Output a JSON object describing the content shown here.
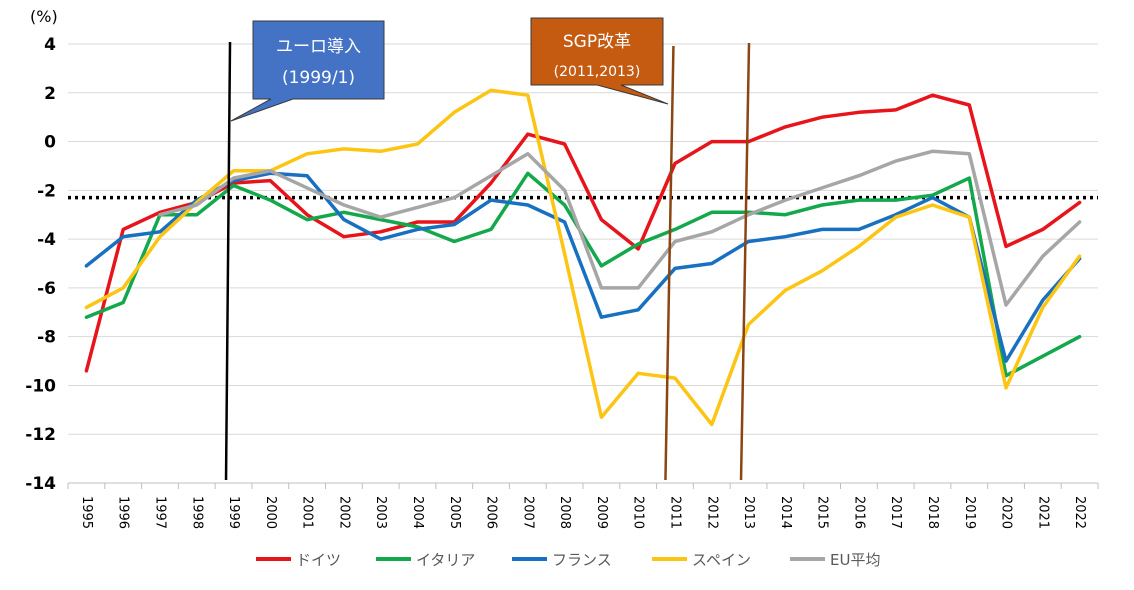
{
  "chart_data": {
    "type": "line",
    "y_unit": "(%)",
    "ylim": [
      -14,
      4
    ],
    "yticks": [
      4,
      2,
      0,
      -2,
      -4,
      -6,
      -8,
      -10,
      -12,
      -14
    ],
    "categories": [
      "1995",
      "1996",
      "1997",
      "1998",
      "1999",
      "2000",
      "2001",
      "2002",
      "2003",
      "2004",
      "2005",
      "2006",
      "2007",
      "2008",
      "2009",
      "2010",
      "2011",
      "2012",
      "2013",
      "2014",
      "2015",
      "2016",
      "2017",
      "2018",
      "2019",
      "2020",
      "2021",
      "2022"
    ],
    "series": [
      {
        "name": "ドイツ",
        "color": "#e8141b",
        "values": [
          -9.4,
          -3.6,
          -2.9,
          -2.5,
          -1.7,
          -1.6,
          -3.0,
          -3.9,
          -3.7,
          -3.3,
          -3.3,
          -1.7,
          0.3,
          -0.1,
          -3.2,
          -4.4,
          -0.9,
          0.0,
          0.0,
          0.6,
          1.0,
          1.2,
          1.3,
          1.9,
          1.5,
          -4.3,
          -3.6,
          -2.5
        ]
      },
      {
        "name": "イタリア",
        "color": "#13a84b",
        "values": [
          -7.2,
          -6.6,
          -3.0,
          -3.0,
          -1.8,
          -2.4,
          -3.2,
          -2.9,
          -3.2,
          -3.5,
          -4.1,
          -3.6,
          -1.3,
          -2.6,
          -5.1,
          -4.2,
          -3.6,
          -2.9,
          -2.9,
          -3.0,
          -2.6,
          -2.4,
          -2.4,
          -2.2,
          -1.5,
          -9.6,
          -8.8,
          -8.0
        ]
      },
      {
        "name": "フランス",
        "color": "#1870c1",
        "values": [
          -5.1,
          -3.9,
          -3.7,
          -2.4,
          -1.6,
          -1.3,
          -1.4,
          -3.2,
          -4.0,
          -3.6,
          -3.4,
          -2.4,
          -2.6,
          -3.3,
          -7.2,
          -6.9,
          -5.2,
          -5.0,
          -4.1,
          -3.9,
          -3.6,
          -3.6,
          -3.0,
          -2.3,
          -3.1,
          -9.0,
          -6.5,
          -4.8
        ]
      },
      {
        "name": "スペイン",
        "color": "#fcc513",
        "values": [
          -6.8,
          -6.0,
          -3.9,
          -2.5,
          -1.2,
          -1.2,
          -0.5,
          -0.3,
          -0.4,
          -0.1,
          1.2,
          2.1,
          1.9,
          -4.6,
          -11.3,
          -9.5,
          -9.7,
          -11.6,
          -7.5,
          -6.1,
          -5.3,
          -4.3,
          -3.1,
          -2.6,
          -3.1,
          -10.1,
          -6.8,
          -4.7
        ]
      },
      {
        "name": "EU平均",
        "color": "#a6a6a6",
        "values": [
          null,
          null,
          -3.0,
          -2.6,
          -1.5,
          -1.2,
          -1.9,
          -2.6,
          -3.1,
          -2.7,
          -2.3,
          -1.4,
          -0.5,
          -2.0,
          -6.0,
          -6.0,
          -4.1,
          -3.7,
          -3.0,
          -2.4,
          -1.9,
          -1.4,
          -0.8,
          -0.4,
          -0.5,
          -6.7,
          -4.7,
          -3.3
        ]
      }
    ],
    "reference_line": {
      "value": -2.3,
      "style": "dotted",
      "color": "#000000"
    },
    "markers": [
      {
        "year": "1999",
        "color": "#000000"
      },
      {
        "year": "2011",
        "color": "#8b4513"
      },
      {
        "year": "2013",
        "color": "#8b4513"
      }
    ],
    "annotations": [
      {
        "line1": "ユーロ導入",
        "line2": "(1999/1)",
        "fill": "#4472c4"
      },
      {
        "line1": "SGP改革",
        "line2": "(2011,2013)",
        "fill": "#c55a11"
      }
    ],
    "legend_position": "bottom",
    "grid": true
  }
}
